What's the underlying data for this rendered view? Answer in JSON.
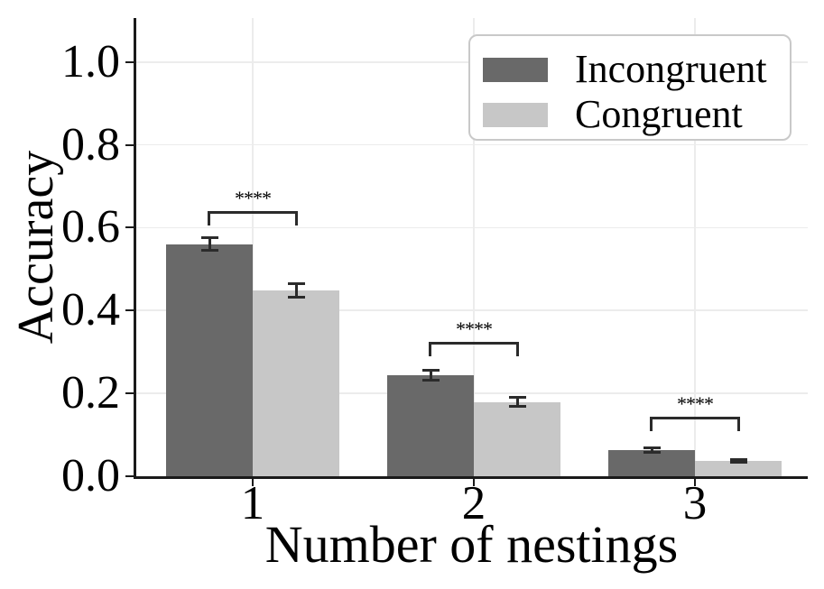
{
  "chart_data": {
    "type": "bar",
    "title": "",
    "xlabel": "Number of nestings",
    "ylabel": "Accuracy",
    "categories": [
      "1",
      "2",
      "3"
    ],
    "series": [
      {
        "name": "Incongruent",
        "color": "#696969",
        "values": [
          0.56,
          0.243,
          0.062
        ],
        "errors": [
          0.015,
          0.013,
          0.005
        ]
      },
      {
        "name": "Congruent",
        "color": "#c7c7c7",
        "values": [
          0.448,
          0.178,
          0.036
        ],
        "errors": [
          0.017,
          0.011,
          0.004
        ]
      }
    ],
    "ytick_labels": [
      "0.0",
      "0.2",
      "0.4",
      "0.6",
      "0.8",
      "1.0"
    ],
    "ylim": [
      0,
      1.08
    ],
    "grid": true,
    "legend_position": "upper-right",
    "significance": [
      "****",
      "****",
      "****"
    ],
    "colors": {
      "spine": "#1a1a1a",
      "grid": "#ececec",
      "error": "#2b2b2b",
      "bracket": "#2b2b2b",
      "background": "#ffffff",
      "legend_border": "#c9c9c9"
    }
  }
}
